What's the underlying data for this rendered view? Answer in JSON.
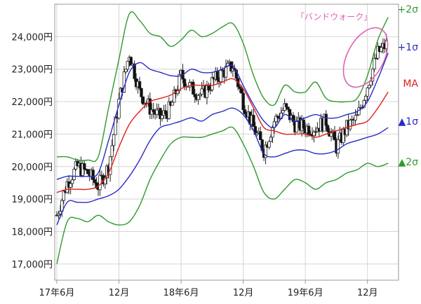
{
  "chart_data": {
    "type": "line",
    "title": "",
    "xlabel": "",
    "ylabel": "",
    "ylim": [
      16500,
      25000
    ],
    "y_ticks": [
      "17,000円",
      "18,000円",
      "19,000円",
      "20,000円",
      "21,000円",
      "22,000円",
      "23,000円",
      "24,000円"
    ],
    "y_tick_values": [
      17000,
      18000,
      19000,
      20000,
      21000,
      22000,
      23000,
      24000
    ],
    "x_ticks": [
      "17年6月",
      "12月",
      "18年6月",
      "12月",
      "19年6月",
      "12月"
    ],
    "x_tick_months": [
      0,
      6,
      12,
      18,
      24,
      30
    ],
    "xlim_months": [
      -0.2,
      33.0
    ],
    "grid": true,
    "legend": [
      {
        "label": "+2σ",
        "color": "#2e9a2e"
      },
      {
        "label": "+1σ",
        "color": "#2a2ac8"
      },
      {
        "label": "MA",
        "color": "#e02020"
      },
      {
        "label": "▲1σ",
        "color": "#2a2ac8"
      },
      {
        "label": "▲2σ",
        "color": "#2e9a2e"
      }
    ],
    "annotation": "「バンドウォーク」",
    "x_months": [
      0,
      1,
      2,
      3,
      4,
      5,
      6,
      7,
      8,
      9,
      10,
      11,
      12,
      13,
      14,
      15,
      16,
      17,
      18,
      19,
      20,
      21,
      22,
      23,
      24,
      25,
      26,
      27,
      28,
      29,
      30,
      31,
      32
    ],
    "series": [
      {
        "name": "+2σ",
        "color": "#2e9a2e",
        "values": [
          20300,
          20300,
          20200,
          20200,
          20300,
          21800,
          23300,
          24700,
          24500,
          24100,
          24000,
          23700,
          23900,
          24200,
          24000,
          24100,
          24300,
          24400,
          23800,
          22800,
          22100,
          21900,
          22500,
          22300,
          22300,
          22600,
          22100,
          22000,
          22000,
          22100,
          22800,
          23900,
          24600
        ]
      },
      {
        "name": "+1σ",
        "color": "#2a2ac8",
        "values": [
          19600,
          19700,
          19700,
          19700,
          19800,
          20800,
          21900,
          22900,
          23200,
          23000,
          22900,
          22800,
          22800,
          23000,
          22900,
          22900,
          23000,
          23100,
          22500,
          21900,
          21400,
          21200,
          21600,
          21400,
          21500,
          21600,
          21500,
          21500,
          21600,
          21700,
          22000,
          22700,
          23500
        ]
      },
      {
        "name": "MA",
        "color": "#e02020",
        "values": [
          19200,
          19300,
          19300,
          19300,
          19400,
          19800,
          20600,
          21300,
          21700,
          22000,
          22100,
          22200,
          22400,
          22500,
          22500,
          22500,
          22600,
          22700,
          22400,
          21800,
          21200,
          21100,
          21000,
          21000,
          21000,
          20900,
          21000,
          21100,
          21200,
          21300,
          21400,
          21800,
          22300
        ]
      },
      {
        "name": "▲1σ",
        "color": "#2a2ac8",
        "values": [
          18200,
          18900,
          18900,
          18900,
          19000,
          19100,
          19300,
          19700,
          20200,
          20800,
          21200,
          21300,
          21400,
          21500,
          21400,
          21600,
          21700,
          21800,
          21600,
          21100,
          20400,
          20300,
          20400,
          20500,
          20500,
          20400,
          20400,
          20500,
          20700,
          20800,
          20900,
          21000,
          21200
        ]
      },
      {
        "name": "▲2σ",
        "color": "#2e9a2e",
        "values": [
          17000,
          18300,
          18400,
          18300,
          18500,
          18300,
          18200,
          18300,
          18800,
          19600,
          20200,
          20700,
          20900,
          20900,
          20900,
          21000,
          21100,
          21200,
          20700,
          20000,
          19200,
          19000,
          19300,
          19600,
          19500,
          19300,
          19500,
          19600,
          19800,
          19900,
          20100,
          20000,
          20100
        ]
      }
    ],
    "candles_close": [
      18500,
      19500,
      20000,
      19800,
      19400,
      20000,
      22000,
      23500,
      22300,
      21800,
      21500,
      21800,
      22800,
      22400,
      22200,
      22600,
      22900,
      23100,
      22000,
      21200,
      20500,
      21400,
      21800,
      21300,
      21200,
      21200,
      21400,
      20600,
      21200,
      21500,
      22500,
      23500,
      23800
    ]
  }
}
